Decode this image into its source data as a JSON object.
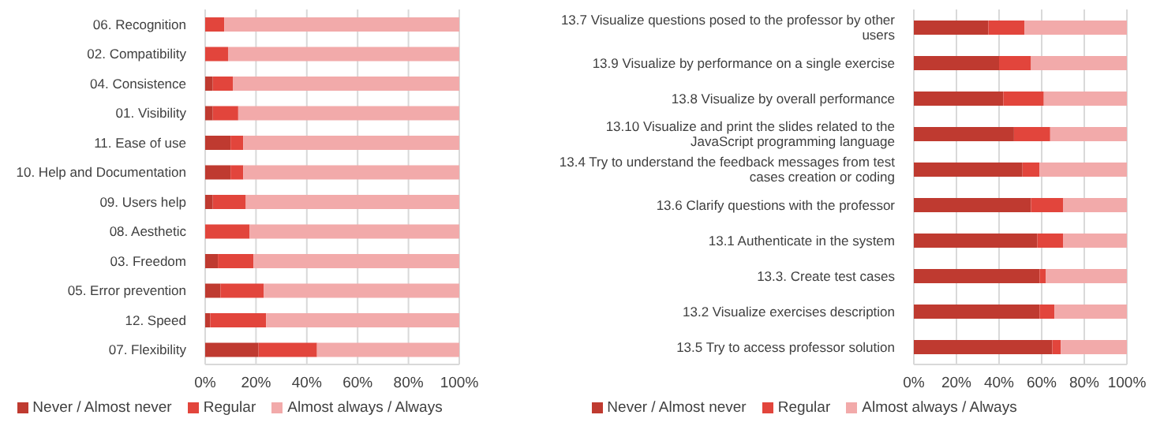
{
  "chart_data": [
    {
      "type": "bar",
      "orientation": "horizontal",
      "stacked": true,
      "grid": "x",
      "legend": "bottom",
      "categories": [
        "06. Recognition",
        "02. Compatibility",
        "04. Consistence",
        "01. Visibility",
        "11. Ease of use",
        "10. Help and Documentation",
        "09. Users help",
        "08. Aesthetic",
        "03. Freedom",
        "05. Error prevention",
        "12. Speed",
        "07. Flexibility"
      ],
      "series": [
        {
          "name": "Never / Almost never",
          "color": "#bf3a30",
          "values": [
            0,
            0,
            3,
            3,
            10,
            10,
            3,
            0,
            5,
            6,
            2,
            21
          ]
        },
        {
          "name": "Regular",
          "color": "#e2453c",
          "values": [
            7.5,
            9,
            8,
            10,
            5,
            5,
            13,
            17.5,
            14,
            17,
            22,
            23
          ]
        },
        {
          "name": "Almost always / Always",
          "color": "#f2aaaa",
          "values": [
            92.5,
            91,
            89,
            87,
            85,
            85,
            84,
            82.5,
            81,
            77,
            76,
            56
          ]
        }
      ],
      "xlim": [
        0,
        100
      ],
      "xticks": [
        {
          "value": 0,
          "label": "0%"
        },
        {
          "value": 20,
          "label": "20%"
        },
        {
          "value": 40,
          "label": "40%"
        },
        {
          "value": 60,
          "label": "60%"
        },
        {
          "value": 80,
          "label": "80%"
        },
        {
          "value": 100,
          "label": "100%"
        }
      ]
    },
    {
      "type": "bar",
      "orientation": "horizontal",
      "stacked": true,
      "grid": "x",
      "legend": "bottom",
      "categories": [
        "13.7 Visualize questions posed to the professor by other users",
        "13.9 Visualize by performance on a single exercise",
        "13.8 Visualize by overall performance",
        "13.10 Visualize and print the slides related to the JavaScript programming language",
        "13.4 Try to understand the feedback messages from test cases creation or coding",
        "13.6 Clarify questions with the professor",
        "13.1 Authenticate in the system",
        "13.3. Create test cases",
        "13.2 Visualize exercises description",
        "13.5 Try to access professor solution"
      ],
      "series": [
        {
          "name": "Never / Almost never",
          "color": "#bf3a30",
          "values": [
            35,
            40,
            42,
            47,
            51,
            55,
            58,
            59,
            59,
            65
          ]
        },
        {
          "name": "Regular",
          "color": "#e2453c",
          "values": [
            17,
            15,
            19,
            17,
            8,
            15,
            12,
            3,
            7,
            4
          ]
        },
        {
          "name": "Almost always / Always",
          "color": "#f2aaaa",
          "values": [
            48,
            45,
            39,
            36,
            41,
            30,
            30,
            38,
            34,
            31
          ]
        }
      ],
      "xlim": [
        0,
        100
      ],
      "xticks": [
        {
          "value": 0,
          "label": "0%"
        },
        {
          "value": 20,
          "label": "20%"
        },
        {
          "value": 40,
          "label": "40%"
        },
        {
          "value": 60,
          "label": "60%"
        },
        {
          "value": 80,
          "label": "80%"
        },
        {
          "value": 100,
          "label": "100%"
        }
      ]
    }
  ]
}
